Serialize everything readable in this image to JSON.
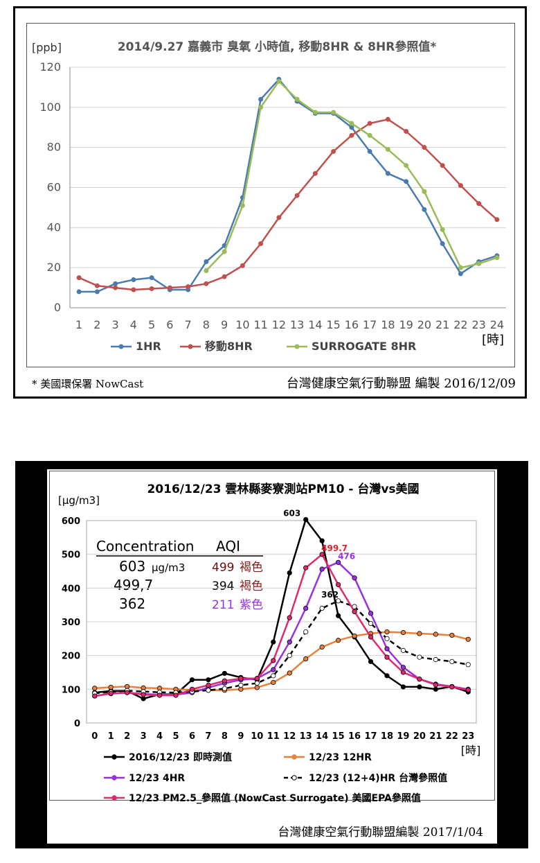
{
  "chart_data": [
    {
      "type": "line",
      "title": "2014/9.27 嘉義市 臭氧 小時值, 移動8HR & 8HR參照值*",
      "unit_label": "[ppb]",
      "xlabel": "[時]",
      "categories": [
        "1",
        "2",
        "3",
        "4",
        "5",
        "6",
        "7",
        "8",
        "9",
        "10",
        "11",
        "12",
        "13",
        "14",
        "15",
        "16",
        "17",
        "18",
        "19",
        "20",
        "21",
        "22",
        "23",
        "24"
      ],
      "yticks": [
        "0",
        "20",
        "40",
        "60",
        "80",
        "100",
        "120"
      ],
      "ylim": [
        0,
        120
      ],
      "grid": true,
      "legend_position": "bottom",
      "series": [
        {
          "name": "1HR",
          "color": "#4a7bb0",
          "values": [
            8,
            8,
            12,
            14,
            15,
            9,
            9,
            23,
            31,
            55,
            104,
            114,
            103,
            97,
            97,
            90,
            78,
            67,
            63,
            49,
            32,
            17,
            23,
            26
          ]
        },
        {
          "name": "移動8HR",
          "color": "#c0504d",
          "values": [
            15,
            11,
            10,
            9,
            9.5,
            10,
            10.5,
            12,
            15.5,
            21,
            32,
            45,
            56,
            67,
            78,
            86,
            92,
            94,
            88,
            80,
            71,
            61,
            52,
            44
          ]
        },
        {
          "name": "SURROGATE 8HR",
          "color": "#9bbb59",
          "values": [
            null,
            null,
            null,
            null,
            null,
            null,
            null,
            18.5,
            28,
            51,
            100,
            113,
            104,
            97.5,
            97.5,
            92,
            86,
            79,
            71,
            58,
            39,
            20,
            22,
            25
          ]
        }
      ],
      "footnote_left": "* 美國環保署 NowCast",
      "footnote_right": "台灣健康空氣行動聯盟 編製 2016/12/09"
    },
    {
      "type": "line",
      "title": "2016/12/23 雲林縣麥寮測站PM10 - 台灣vs美國",
      "unit_label": "[μg/m3]",
      "xlabel": "[時]",
      "categories": [
        "0",
        "1",
        "2",
        "3",
        "4",
        "5",
        "6",
        "7",
        "8",
        "9",
        "10",
        "11",
        "12",
        "13",
        "14",
        "15",
        "16",
        "17",
        "18",
        "19",
        "20",
        "21",
        "22",
        "23"
      ],
      "yticks": [
        "0",
        "100",
        "200",
        "300",
        "400",
        "500",
        "600"
      ],
      "ylim": [
        0,
        600
      ],
      "grid": true,
      "legend_position": "bottom",
      "series": [
        {
          "name": "2016/12/23  即時測值",
          "color": "#000000",
          "style": "solid",
          "values": [
            90,
            95,
            95,
            72,
            85,
            85,
            128,
            128,
            147,
            135,
            128,
            240,
            445,
            603,
            540,
            318,
            255,
            182,
            140,
            107,
            107,
            100,
            108,
            92
          ]
        },
        {
          "name": "12/23  12HR",
          "color": "#e8823a",
          "style": "solid",
          "values": [
            103,
            106,
            108,
            104,
            103,
            100,
            98,
            97,
            97,
            100,
            105,
            120,
            148,
            190,
            225,
            245,
            258,
            265,
            270,
            268,
            265,
            263,
            260,
            248
          ]
        },
        {
          "name": "12/23  4HR",
          "color": "#9b30e0",
          "style": "solid",
          "values": [
            80,
            87,
            90,
            86,
            84,
            84,
            90,
            105,
            118,
            128,
            132,
            158,
            240,
            340,
            456,
            476,
            430,
            325,
            220,
            165,
            130,
            115,
            108,
            100
          ]
        },
        {
          "name": "12/23  (12+4)HR  台灣參照值",
          "color": "#000000",
          "style": "dashed",
          "values": [
            88,
            92,
            96,
            93,
            91,
            90,
            93,
            97,
            102,
            112,
            118,
            140,
            200,
            270,
            340,
            362,
            345,
            295,
            250,
            215,
            195,
            188,
            182,
            173
          ]
        },
        {
          "name": "12/23 PM2.5_參照值  (NowCast Surrogate) 美國EPA參照值",
          "color": "#e0286e",
          "style": "solid",
          "values": [
            80,
            88,
            90,
            84,
            82,
            82,
            100,
            112,
            125,
            132,
            132,
            185,
            312,
            460,
            499.7,
            410,
            330,
            255,
            195,
            150,
            130,
            113,
            107,
            98
          ]
        }
      ],
      "peak_labels": [
        {
          "text": "603",
          "color": "#000000",
          "x": "13",
          "y": 603
        },
        {
          "text": "499.7",
          "color": "#e0202a",
          "x": "14",
          "y": 499.7
        },
        {
          "text": "476",
          "color": "#9b30e0",
          "x": "15",
          "y": 476
        },
        {
          "text": "362",
          "color": "#000000",
          "x": "15",
          "y": 362
        }
      ],
      "inset_table": {
        "headers": [
          "Concentration",
          "AQI"
        ],
        "rows": [
          {
            "conc": "603",
            "unit": "μg/m3",
            "aqi": "499",
            "aqi_color": "#6b0f0f",
            "label": "褐色",
            "label_color": "#8b1a1a"
          },
          {
            "conc": "499,7",
            "unit": "",
            "aqi": "394",
            "aqi_color": "#000000",
            "label": "褐色",
            "label_color": "#8b1a1a"
          },
          {
            "conc": "362",
            "unit": "",
            "aqi": "211",
            "aqi_color": "#9b30e0",
            "label": "紫色",
            "label_color": "#9b30e0"
          }
        ]
      },
      "footnote_right": "台灣健康空氣行動聯盟編製 2017/1/04"
    }
  ]
}
